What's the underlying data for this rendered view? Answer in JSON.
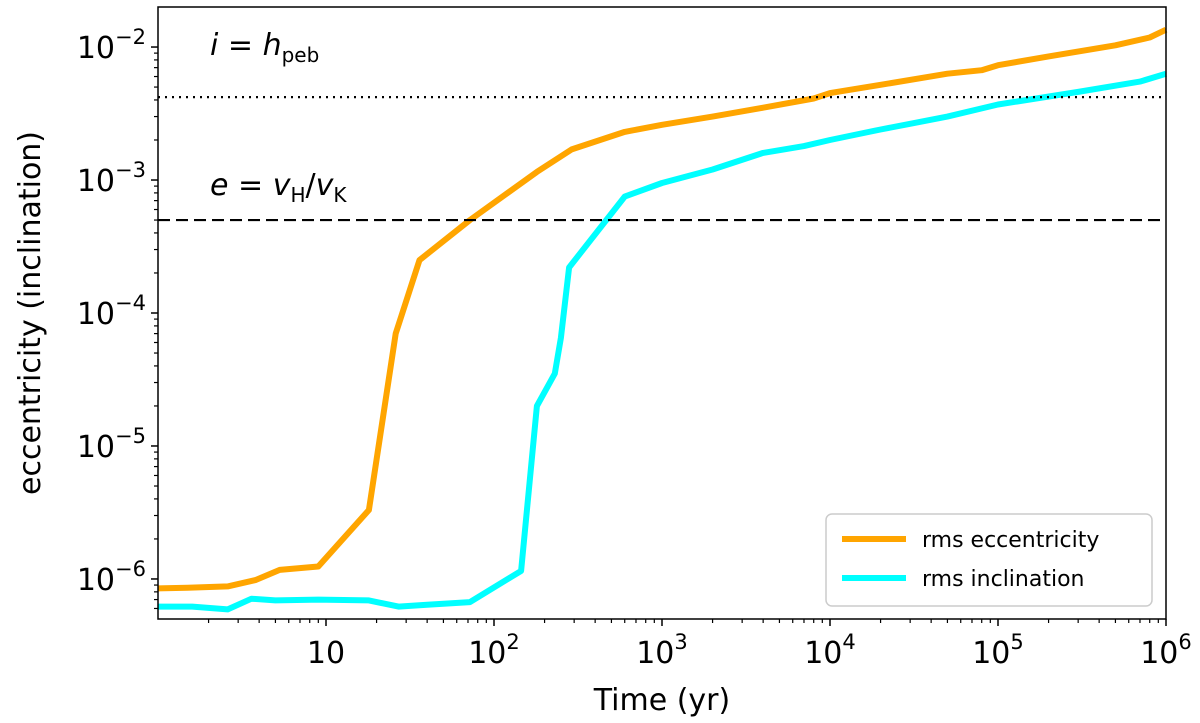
{
  "chart_data": {
    "type": "line",
    "xscale": "log",
    "yscale": "log",
    "xlabel": "Time (yr)",
    "ylabel": "eccentricity (inclination)",
    "xlim": [
      1,
      1000000
    ],
    "ylim": [
      5e-07,
      0.02
    ],
    "grid": false,
    "x_ticks": [
      {
        "value": 10,
        "label": "10",
        "exp": ""
      },
      {
        "value": 100,
        "label": "10",
        "exp": "2"
      },
      {
        "value": 1000,
        "label": "10",
        "exp": "3"
      },
      {
        "value": 10000,
        "label": "10",
        "exp": "4"
      },
      {
        "value": 100000,
        "label": "10",
        "exp": "5"
      },
      {
        "value": 1000000,
        "label": "10",
        "exp": "6"
      }
    ],
    "y_ticks": [
      {
        "value": 1e-06,
        "label": "10",
        "exp": "−6"
      },
      {
        "value": 1e-05,
        "label": "10",
        "exp": "−5"
      },
      {
        "value": 0.0001,
        "label": "10",
        "exp": "−4"
      },
      {
        "value": 0.001,
        "label": "10",
        "exp": "−3"
      },
      {
        "value": 0.01,
        "label": "10",
        "exp": "−2"
      }
    ],
    "series": [
      {
        "name": "rms eccentricity",
        "color": "#FFA500",
        "x": [
          1,
          1.5,
          2.6,
          3.8,
          5.3,
          9,
          18,
          26,
          36,
          72,
          180,
          290,
          600,
          1000,
          2000,
          4000,
          8000,
          10000,
          20000,
          50000,
          80000,
          100000,
          200000,
          500000,
          800000,
          1000000
        ],
        "y": [
          8.5e-07,
          8.6e-07,
          8.8e-07,
          9.8e-07,
          1.17e-06,
          1.24e-06,
          3.3e-06,
          7e-05,
          0.00025,
          0.0005,
          0.00115,
          0.0017,
          0.0023,
          0.0026,
          0.003,
          0.0035,
          0.0041,
          0.0045,
          0.0052,
          0.0063,
          0.0067,
          0.0073,
          0.0085,
          0.0103,
          0.0118,
          0.0135
        ]
      },
      {
        "name": "rms inclination",
        "color": "#00FFFF",
        "x": [
          1,
          1.6,
          2.6,
          3.6,
          5,
          9,
          18,
          27,
          40,
          72,
          145,
          180,
          230,
          250,
          280,
          600,
          1000,
          2000,
          4000,
          7000,
          10000,
          20000,
          50000,
          100000,
          300000,
          700000,
          1000000
        ],
        "y": [
          6.2e-07,
          6.2e-07,
          5.9e-07,
          7.1e-07,
          6.9e-07,
          7e-07,
          6.9e-07,
          6.2e-07,
          6.4e-07,
          6.7e-07,
          1.15e-06,
          2e-05,
          3.5e-05,
          6.5e-05,
          0.00022,
          0.00075,
          0.00095,
          0.0012,
          0.0016,
          0.0018,
          0.002,
          0.0024,
          0.003,
          0.0037,
          0.0046,
          0.0055,
          0.0063
        ]
      }
    ],
    "hlines": [
      {
        "name": "i = h_peb",
        "y": 0.0042,
        "style": "dotted",
        "color": "#000000"
      },
      {
        "name": "e = v_H / v_K",
        "y": 0.0005,
        "style": "dashed",
        "color": "#000000"
      }
    ],
    "annotations": {
      "i_label": {
        "var": "i",
        "eq": " = ",
        "sym": "h",
        "sub": "peb"
      },
      "e_label": {
        "var": "e",
        "eq": " = ",
        "num": "v",
        "num_sub": "H",
        "slash": "/",
        "den": "v",
        "den_sub": "K"
      }
    },
    "legend": {
      "position": "bottom-right",
      "entries": [
        "rms eccentricity",
        "rms inclination"
      ]
    }
  }
}
